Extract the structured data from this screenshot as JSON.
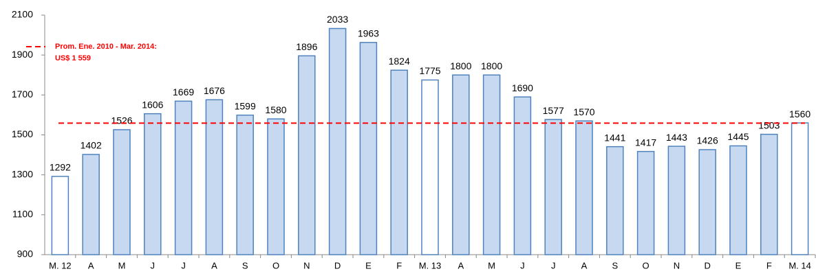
{
  "chart_data": {
    "type": "bar",
    "categories": [
      "M. 12",
      "A",
      "M",
      "J",
      "J",
      "A",
      "S",
      "O",
      "N",
      "D",
      "E",
      "F",
      "M. 13",
      "A",
      "M",
      "J",
      "J",
      "A",
      "S",
      "O",
      "N",
      "D",
      "E",
      "F",
      "M. 14"
    ],
    "values": [
      1292,
      1402,
      1526,
      1606,
      1669,
      1676,
      1599,
      1580,
      1896,
      2033,
      1963,
      1824,
      1775,
      1800,
      1800,
      1690,
      1577,
      1570,
      1441,
      1417,
      1443,
      1426,
      1445,
      1503,
      1560
    ],
    "colors": [
      "#ffffff",
      "#c6d9f1",
      "#c6d9f1",
      "#c6d9f1",
      "#c6d9f1",
      "#c6d9f1",
      "#c6d9f1",
      "#c6d9f1",
      "#c6d9f1",
      "#c6d9f1",
      "#c6d9f1",
      "#c6d9f1",
      "#ffffff",
      "#c6d9f1",
      "#c6d9f1",
      "#c6d9f1",
      "#c6d9f1",
      "#c6d9f1",
      "#c6d9f1",
      "#c6d9f1",
      "#c6d9f1",
      "#c6d9f1",
      "#c6d9f1",
      "#c6d9f1",
      "#ffffff"
    ],
    "border_color": "#4f81bd",
    "ylim": [
      900,
      2100
    ],
    "yticks": [
      900,
      1100,
      1300,
      1500,
      1700,
      1900,
      2100
    ],
    "grid": false,
    "reference_line": {
      "value": 1559,
      "color": "#ff0000",
      "label_lines": [
        "Prom. Ene. 2010 - Mar. 2014:",
        "US$ 1 559"
      ]
    }
  }
}
